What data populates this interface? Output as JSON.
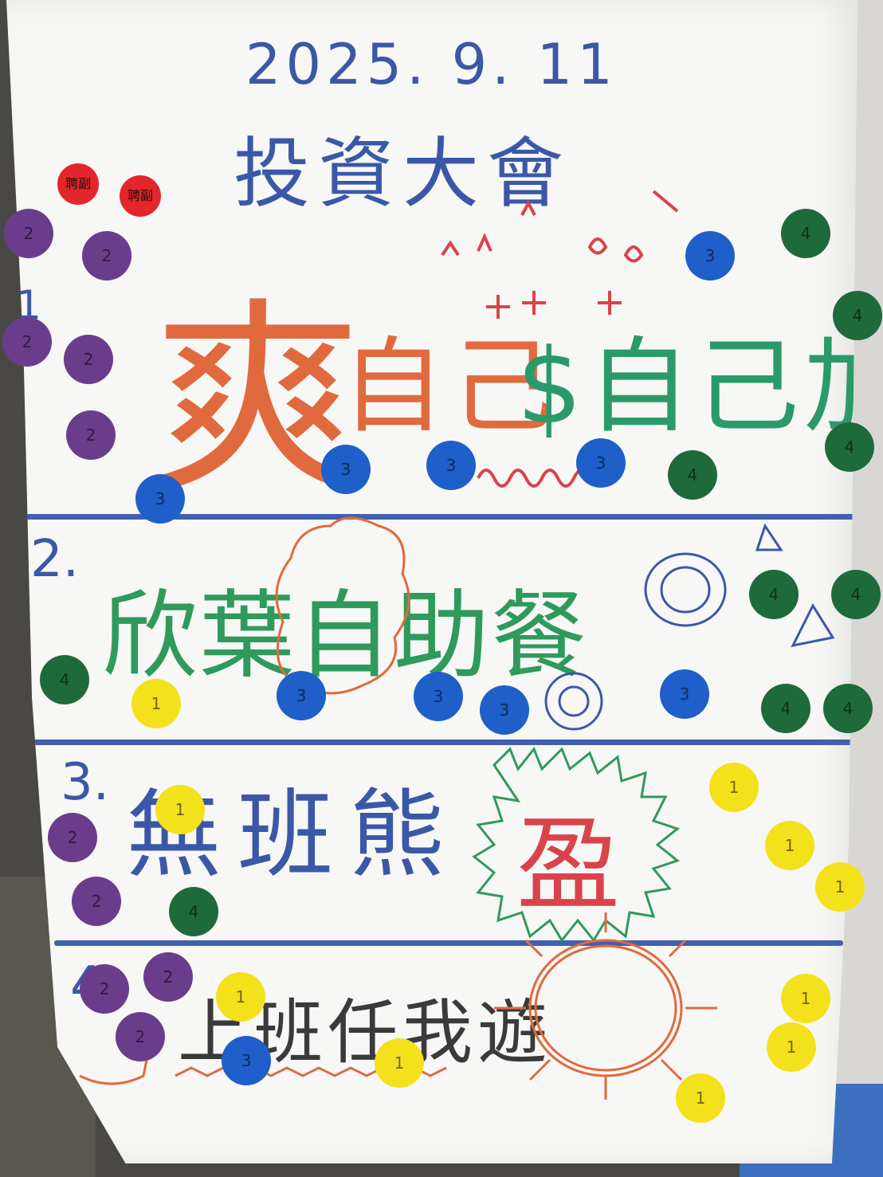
{
  "poster": {
    "date": "2025. 9. 11",
    "title": "投資大會",
    "sections": [
      {
        "number": "1.",
        "text_a": "爽",
        "text_b": "自己",
        "text_c": "$自己加"
      },
      {
        "number": "2.",
        "text": "欣葉自助餐"
      },
      {
        "number": "3.",
        "text": "無班熊",
        "mark": "盈"
      },
      {
        "number": "4.",
        "text": "上班任我遊"
      }
    ],
    "sticker_label_red": "聘副"
  },
  "colors": {
    "blue_ink": "#3b58a8",
    "orange_ink": "#e06a3e",
    "green_ink": "#2e9a5c",
    "red_ink": "#d9434b",
    "sticker_purple": "#6a3d8c",
    "sticker_blue": "#1e5fc9",
    "sticker_green": "#1f6a3a",
    "sticker_yellow": "#f3e11c",
    "sticker_red": "#e3262b"
  }
}
